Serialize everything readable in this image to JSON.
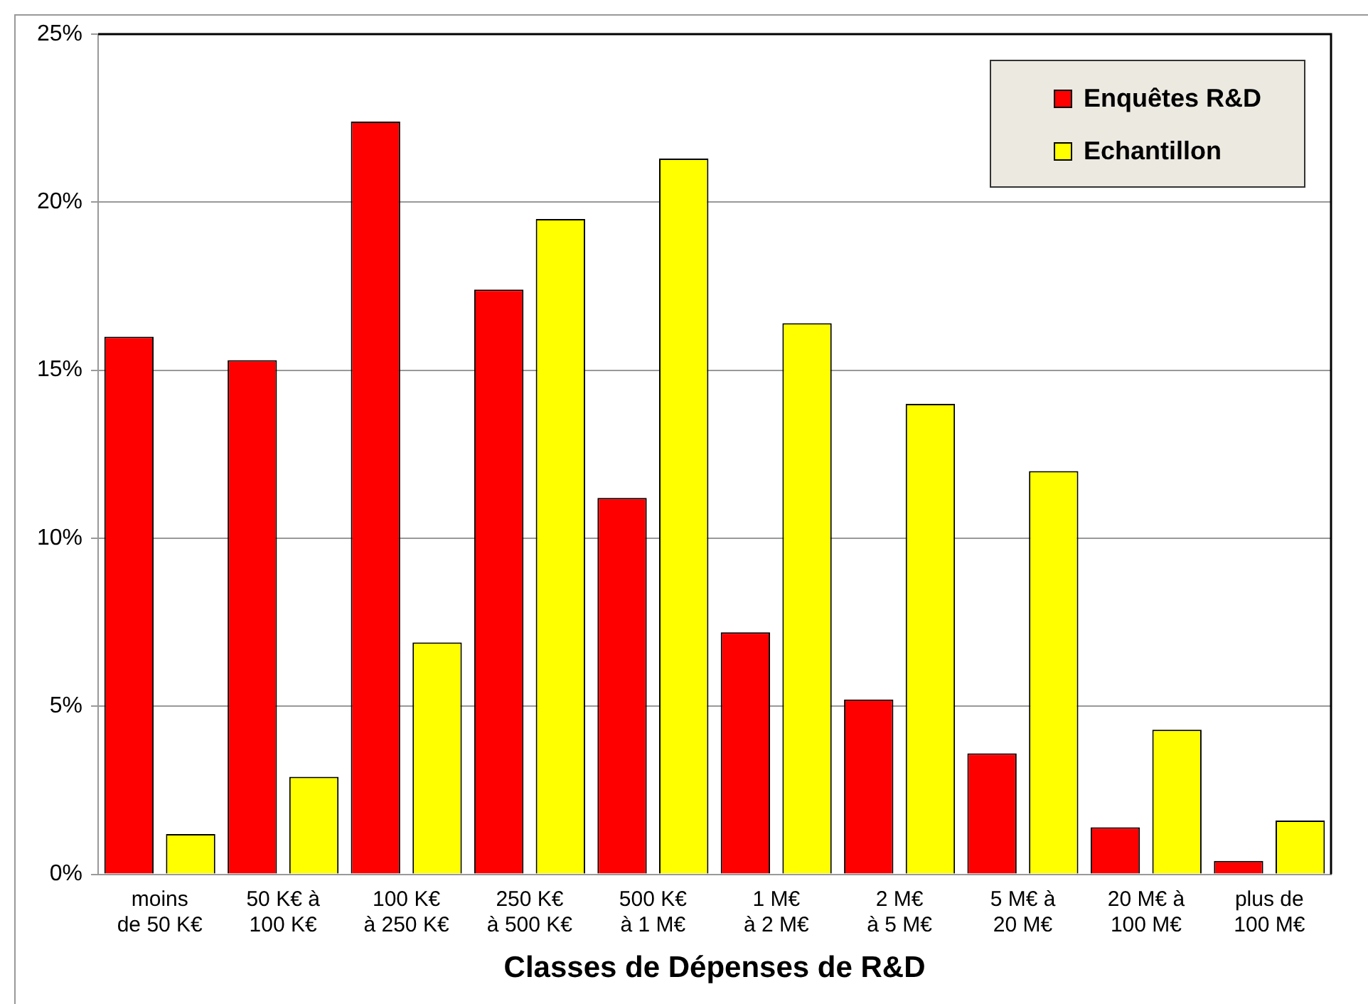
{
  "chart_data": {
    "type": "bar",
    "xlabel": "Classes de Dépenses de R&D",
    "categories": [
      "moins de 50 K€",
      "50 K€ à 100 K€",
      "100 K€ à 250 K€",
      "250 K€ à 500 K€",
      "500 K€ à 1 M€",
      "1 M€ à 2 M€",
      "2 M€ à 5 M€",
      "5 M€ à 20 M€",
      "20 M€ à 100 M€",
      "plus de 100 M€"
    ],
    "series": [
      {
        "name": "Enquêtes R&D",
        "color": "#ff0000",
        "values": [
          16,
          15.3,
          22.4,
          17.4,
          11.2,
          7.2,
          5.2,
          3.6,
          1.4,
          0.4
        ]
      },
      {
        "name": "Echantillon",
        "color": "#ffff00",
        "values": [
          1.2,
          2.9,
          6.9,
          19.5,
          21.3,
          16.4,
          14,
          12,
          4.3,
          1.6
        ]
      }
    ],
    "ylim": [
      0,
      25
    ],
    "yticks": [
      {
        "value": 0,
        "label": "0%"
      },
      {
        "value": 5,
        "label": "5%"
      },
      {
        "value": 10,
        "label": "10%"
      },
      {
        "value": 15,
        "label": "15%"
      },
      {
        "value": 20,
        "label": "20%"
      },
      {
        "value": 25,
        "label": "25%"
      }
    ],
    "grid": "y",
    "legend": "top right"
  }
}
